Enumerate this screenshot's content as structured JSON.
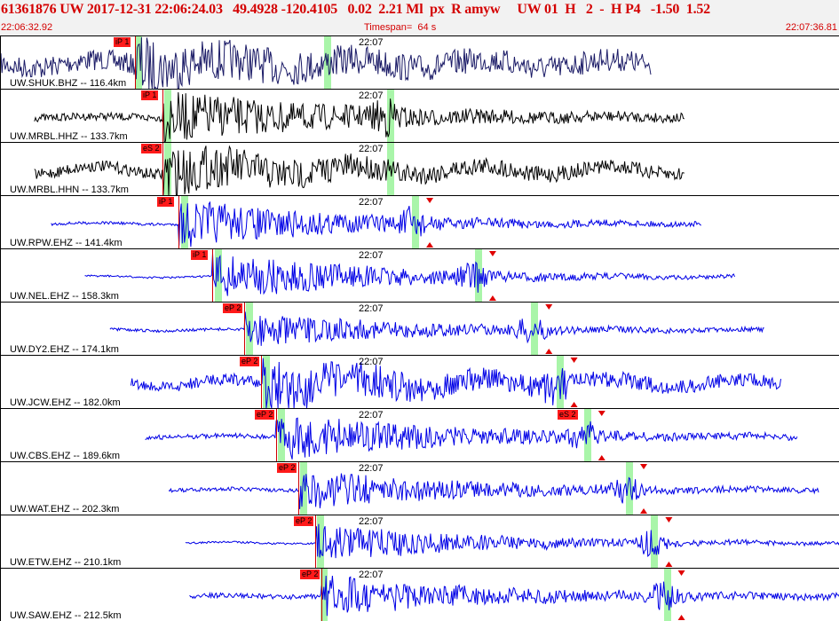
{
  "header": {
    "title": "61361876 UW 2017-12-31 22:06:24.03   49.4928 -120.4105   0.02  2.21 Ml  px  R amyw     UW 01  H   2  -  H P4   -1.50  1.52",
    "start_time": "22:06:32.92",
    "timespan": "Timespan=  64 s",
    "end_time": "22:07:36.81"
  },
  "time_mark": "22:07",
  "colors": {
    "header_text": "#d40000",
    "pick_box": "#ff1a1a",
    "trace_blue": "#0000e6",
    "trace_black": "#000000",
    "trace_navy": "#1a1a66",
    "green_band": "#a9f5a9"
  },
  "panels": [
    {
      "label": "UW.SHUK.BHZ -- 116.4km",
      "color": "#1a1a66",
      "picks": [
        "iP 1"
      ],
      "start": 0.0,
      "end": 0.775,
      "onset": 0.16,
      "amp": 0.35,
      "noise": 0.22,
      "band": 0.385,
      "band2": 0.16
    },
    {
      "label": "UW.MRBL.HHZ -- 133.7km",
      "color": "#000000",
      "picks": [
        "iP 1"
      ],
      "start": 0.04,
      "end": 0.815,
      "onset": 0.193,
      "amp": 0.5,
      "noise": 0.08,
      "band": 0.195,
      "band2": 0.46
    },
    {
      "label": "UW.MRBL.HHN -- 133.7km",
      "color": "#000000",
      "picks": [
        "eS 2"
      ],
      "start": 0.04,
      "end": 0.815,
      "onset": 0.193,
      "amp": 0.45,
      "noise": 0.12,
      "band": 0.46,
      "band2": 0.195
    },
    {
      "label": "UW.RPW.EHZ -- 141.4km",
      "color": "#0000e6",
      "picks": [
        "iP 1"
      ],
      "start": 0.06,
      "end": 0.835,
      "onset": 0.212,
      "amp": 0.5,
      "noise": 0.03,
      "band": 0.215,
      "band2": 0.49
    },
    {
      "label": "UW.NEL.EHZ -- 158.3km",
      "color": "#0000e6",
      "picks": [
        "iP 1"
      ],
      "start": 0.1,
      "end": 0.875,
      "onset": 0.252,
      "amp": 0.5,
      "noise": 0.02,
      "band": 0.255,
      "band2": 0.565
    },
    {
      "label": "UW.DY2.EHZ -- 174.1km",
      "color": "#0000e6",
      "picks": [
        "eP 2"
      ],
      "start": 0.13,
      "end": 0.91,
      "onset": 0.29,
      "amp": 0.35,
      "noise": 0.03,
      "band": 0.292,
      "band2": 0.632
    },
    {
      "label": "UW.JCW.EHZ -- 182.0km",
      "color": "#0000e6",
      "picks": [
        "eP 2"
      ],
      "start": 0.155,
      "end": 0.93,
      "onset": 0.31,
      "amp": 0.45,
      "noise": 0.12,
      "band": 0.312,
      "band2": 0.662
    },
    {
      "label": "UW.CBS.EHZ -- 189.6km",
      "color": "#0000e6",
      "picks": [
        "eP 2",
        "eS 2"
      ],
      "start": 0.172,
      "end": 0.95,
      "onset": 0.328,
      "amp": 0.45,
      "noise": 0.05,
      "band": 0.33,
      "band2": 0.695
    },
    {
      "label": "UW.WAT.EHZ -- 202.3km",
      "color": "#0000e6",
      "picks": [
        "eP 2"
      ],
      "start": 0.2,
      "end": 0.975,
      "onset": 0.355,
      "amp": 0.4,
      "noise": 0.04,
      "band": 0.357,
      "band2": 0.745
    },
    {
      "label": "UW.ETW.EHZ -- 210.1km",
      "color": "#0000e6",
      "picks": [
        "eP 2"
      ],
      "start": 0.22,
      "end": 1.0,
      "onset": 0.375,
      "amp": 0.4,
      "noise": 0.02,
      "band": 0.377,
      "band2": 0.775
    },
    {
      "label": "UW.SAW.EHZ -- 212.5km",
      "color": "#0000e6",
      "picks": [
        "eP 2"
      ],
      "start": 0.225,
      "end": 1.0,
      "onset": 0.382,
      "amp": 0.4,
      "noise": 0.05,
      "band": 0.381,
      "band2": 0.79
    }
  ]
}
